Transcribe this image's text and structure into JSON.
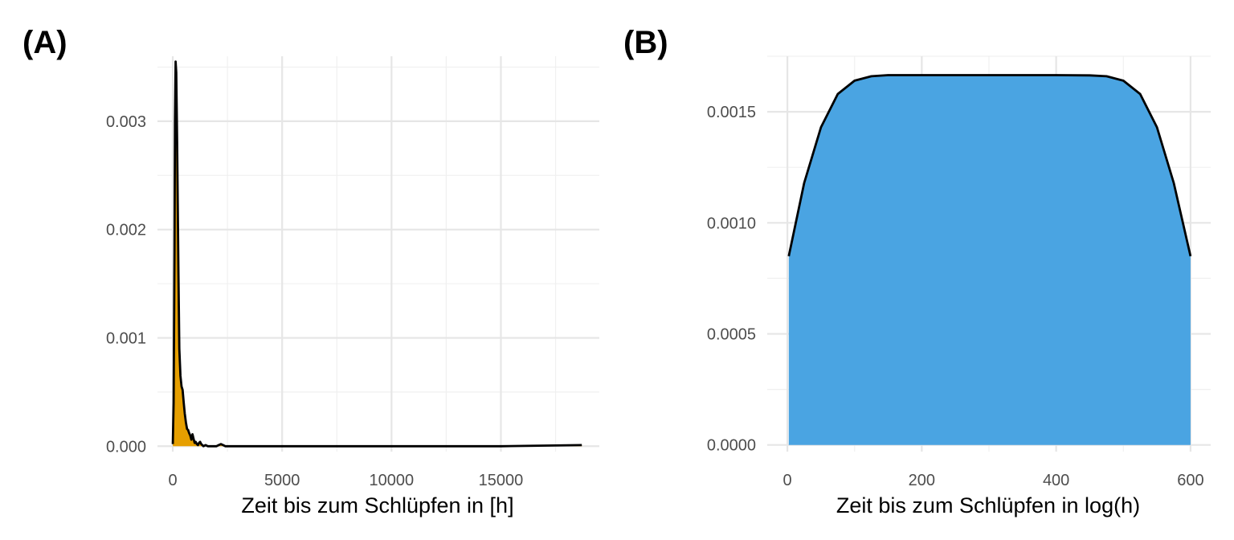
{
  "chart_data": [
    {
      "panel_label": "(A)",
      "type": "area",
      "fill_color": "#E69F00",
      "line_color": "#000000",
      "xlabel": "Zeit bis zum Schlüpfen in [h]",
      "ylabel": "",
      "xlim": [
        -700,
        19500
      ],
      "ylim": [
        -5e-05,
        0.0036
      ],
      "xticks": [
        0,
        5000,
        10000,
        15000
      ],
      "xtick_labels": [
        "0",
        "5000",
        "10000",
        "15000"
      ],
      "yticks": [
        0.0,
        0.001,
        0.002,
        0.003
      ],
      "ytick_labels": [
        "0.000",
        "0.001",
        "0.002",
        "0.003"
      ],
      "grid": true,
      "legend": "none",
      "x": [
        0,
        40,
        80,
        100,
        130,
        160,
        200,
        260,
        300,
        350,
        400,
        450,
        500,
        550,
        600,
        650,
        700,
        750,
        800,
        850,
        900,
        950,
        1000,
        1050,
        1100,
        1150,
        1200,
        1250,
        1300,
        1400,
        1500,
        1600,
        1800,
        2000,
        2100,
        2200,
        2300,
        2400,
        3000,
        6000,
        10000,
        15000,
        18700
      ],
      "y": [
        2e-05,
        0.0004,
        0.0018,
        0.003,
        0.00355,
        0.00345,
        0.0028,
        0.0016,
        0.0009,
        0.00065,
        0.00055,
        0.00052,
        0.0004,
        0.0003,
        0.00022,
        0.00016,
        0.00015,
        0.00012,
        0.0001,
        6e-05,
        0.00011,
        7e-05,
        3e-05,
        4e-05,
        2e-05,
        1e-05,
        3e-05,
        4e-05,
        2e-05,
        0.0,
        1e-05,
        0.0,
        0.0,
        0.0,
        1e-05,
        2e-05,
        1e-05,
        0.0,
        0.0,
        0.0,
        0.0,
        0.0,
        1e-05
      ]
    },
    {
      "panel_label": "(B)",
      "type": "area",
      "fill_color": "#4AA4E2",
      "line_color": "#000000",
      "xlabel": "Zeit bis zum Schlüpfen in log(h)",
      "ylabel": "",
      "xlim": [
        -30,
        630
      ],
      "ylim": [
        -3e-05,
        0.00175
      ],
      "xticks": [
        0,
        200,
        400,
        600
      ],
      "xtick_labels": [
        "0",
        "200",
        "400",
        "600"
      ],
      "yticks": [
        0.0,
        0.0005,
        0.001,
        0.0015
      ],
      "ytick_labels": [
        "0.0000",
        "0.0005",
        "0.0010",
        "0.0015"
      ],
      "grid": true,
      "legend": "none",
      "x": [
        2,
        25,
        50,
        75,
        100,
        125,
        150,
        200,
        250,
        300,
        350,
        400,
        450,
        475,
        500,
        525,
        550,
        575,
        600
      ],
      "y": [
        0.00085,
        0.00118,
        0.00143,
        0.00158,
        0.00164,
        0.00166,
        0.001665,
        0.001665,
        0.001665,
        0.001665,
        0.001665,
        0.001665,
        0.001664,
        0.00166,
        0.00164,
        0.00158,
        0.00143,
        0.00118,
        0.00085
      ]
    }
  ]
}
